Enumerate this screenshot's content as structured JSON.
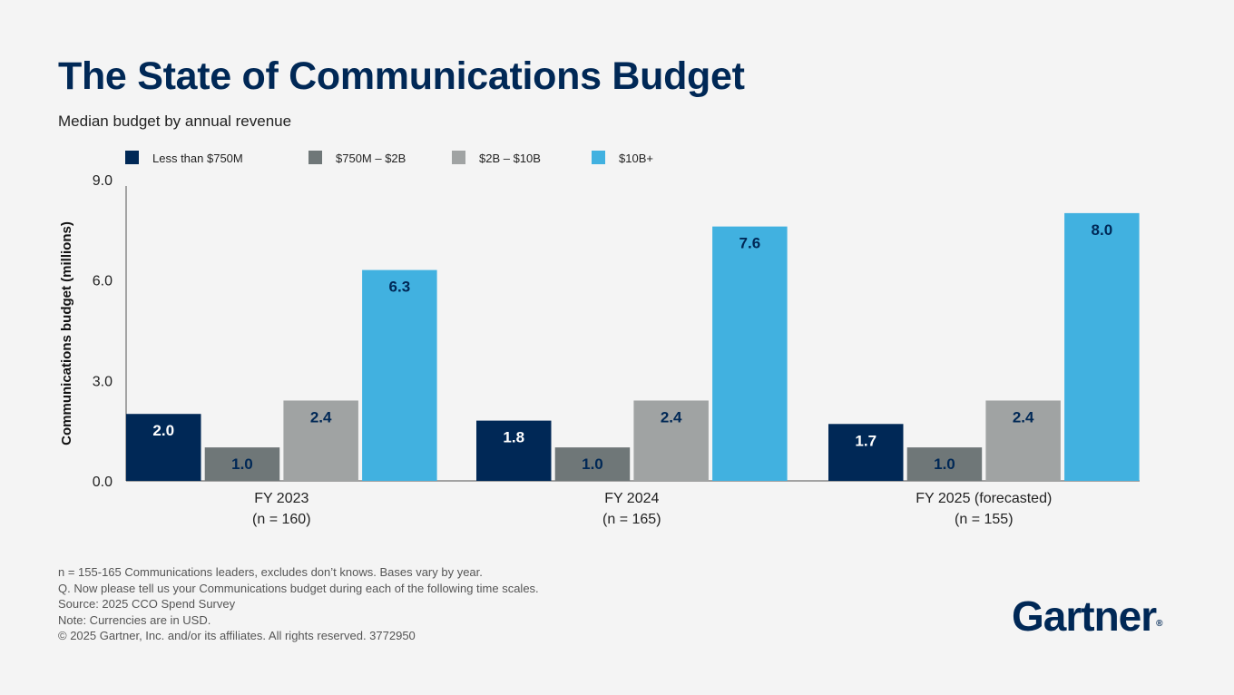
{
  "chart_data": {
    "type": "bar",
    "title": "The State of Communications Budget",
    "subtitle": "Median budget by annual revenue",
    "xlabel": "",
    "ylabel": "Communications budget (millions)",
    "ylim": [
      0,
      9
    ],
    "yticks": [
      "0.0",
      "3.0",
      "6.0",
      "9.0"
    ],
    "grid": false,
    "legend_placement": "top-left",
    "categories": [
      {
        "line1": "FY 2023",
        "line2": "(n = 160)"
      },
      {
        "line1": "FY 2024",
        "line2": "(n = 165)"
      },
      {
        "line1": "FY 2025 (forecasted)",
        "line2": "(n = 155)"
      }
    ],
    "series": [
      {
        "name": "Less than $750M",
        "color": "#002856",
        "label_color": "#ffffff",
        "values": [
          2.0,
          1.8,
          1.7
        ]
      },
      {
        "name": "$750M – $2B",
        "color": "#6f7778",
        "label_color": "#002856",
        "values": [
          1.0,
          1.0,
          1.0
        ]
      },
      {
        "name": "$2B – $10B",
        "color": "#a0a3a3",
        "label_color": "#002856",
        "values": [
          2.4,
          2.4,
          2.4
        ]
      },
      {
        "name": "$10B+",
        "color": "#41b1e0",
        "label_color": "#002856",
        "values": [
          6.3,
          7.6,
          8.0
        ]
      }
    ]
  },
  "notes": [
    "n = 155-165 Communications leaders, excludes don’t knows. Bases vary by year.",
    "Q. Now please tell us your Communications budget during each of the following time scales.",
    "Source: 2025 CCO Spend Survey",
    "Note: Currencies are in USD.",
    "© 2025 Gartner, Inc. and/or its affiliates. All rights reserved. 3772950"
  ],
  "logo": {
    "text": "Gartner",
    "mark": "®"
  }
}
